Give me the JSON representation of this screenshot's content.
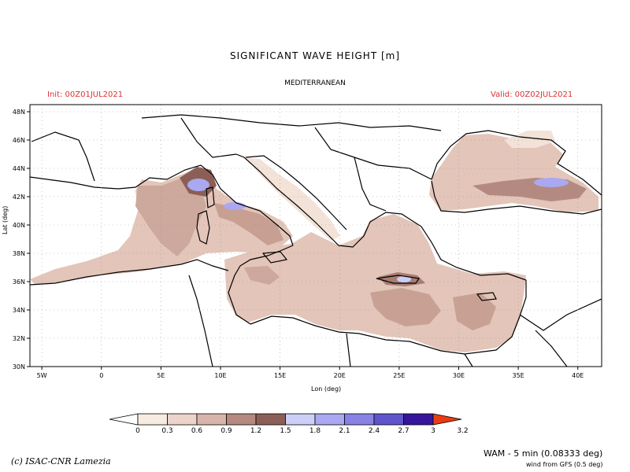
{
  "header": {
    "title": "SIGNIFICANT WAVE HEIGHT [m]",
    "subtitle": "MEDITERRANEAN",
    "init": "Init: 00Z01JUL2021",
    "valid": "Valid: 00Z02JUL2021"
  },
  "axes": {
    "xlabel": "Lon (deg)",
    "ylabel": "Lat (deg)",
    "lon_ticks": [
      "5W",
      "0",
      "5E",
      "10E",
      "15E",
      "20E",
      "25E",
      "30E",
      "35E",
      "40E"
    ],
    "lon_values": [
      -5,
      0,
      5,
      10,
      15,
      20,
      25,
      30,
      35,
      40
    ],
    "lat_ticks": [
      "48N",
      "46N",
      "44N",
      "42N",
      "40N",
      "38N",
      "36N",
      "34N",
      "32N",
      "30N"
    ],
    "lat_values": [
      48,
      46,
      44,
      42,
      40,
      38,
      36,
      34,
      32,
      30
    ],
    "lon_range": [
      -6,
      42
    ],
    "lat_range": [
      30,
      48.5
    ],
    "grid": true
  },
  "legend": {
    "labels": [
      "0",
      "0.3",
      "0.6",
      "0.9",
      "1.2",
      "1.5",
      "1.8",
      "2.1",
      "2.4",
      "2.7",
      "3",
      "3.2"
    ],
    "colors": [
      "#ffffff",
      "#f7ebe2",
      "#ecd4cb",
      "#d8b5aa",
      "#b48a80",
      "#8c5f56",
      "#cccff7",
      "#aaa8f0",
      "#8882e6",
      "#5e55cc",
      "#36159c",
      "#e83c14"
    ]
  },
  "footer": {
    "credit": "(c) ISAC-CNR Lamezia",
    "model": "WAM - 5 min (0.08333 deg)",
    "wind": "wind from GFS (0.5 deg)"
  }
}
